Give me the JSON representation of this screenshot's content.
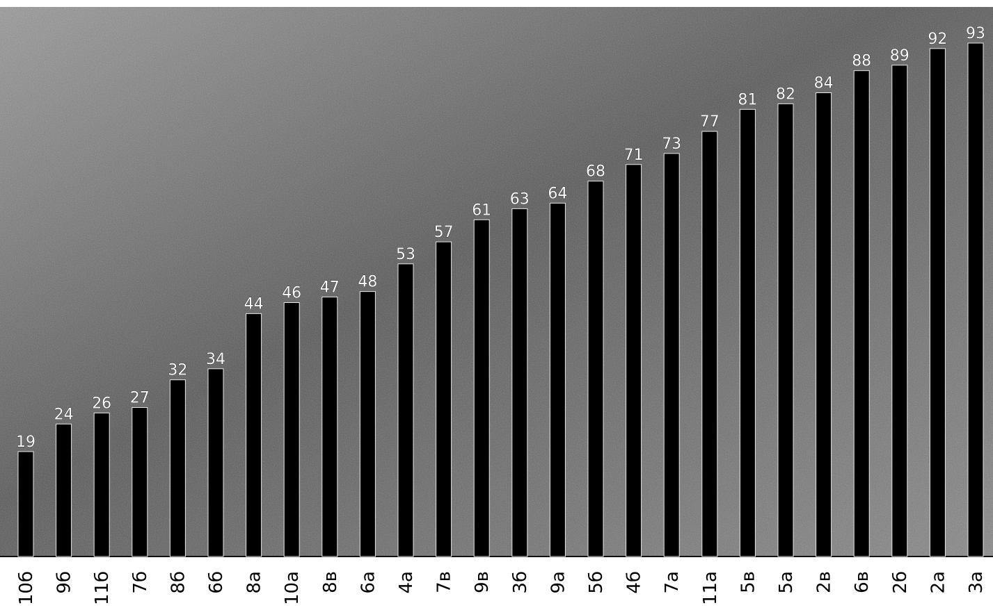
{
  "chart_data": {
    "type": "bar",
    "categories": [
      "10б",
      "9б",
      "11б",
      "7б",
      "8б",
      "6б",
      "8а",
      "10а",
      "8в",
      "6а",
      "4а",
      "7в",
      "9в",
      "3б",
      "9а",
      "5б",
      "4б",
      "7а",
      "11а",
      "5в",
      "5а",
      "2в",
      "6в",
      "2б",
      "2а",
      "3а"
    ],
    "values": [
      19,
      24,
      26,
      27,
      32,
      34,
      44,
      46,
      47,
      48,
      53,
      57,
      61,
      63,
      64,
      68,
      71,
      73,
      77,
      81,
      82,
      84,
      88,
      89,
      92,
      93
    ],
    "title": "",
    "xlabel": "",
    "ylabel": "",
    "ylim": [
      0,
      100
    ],
    "grid": false,
    "legend": "none",
    "colors": {
      "bar": "#000000",
      "background": "#7a7a7a",
      "label": "#ffffff"
    }
  }
}
